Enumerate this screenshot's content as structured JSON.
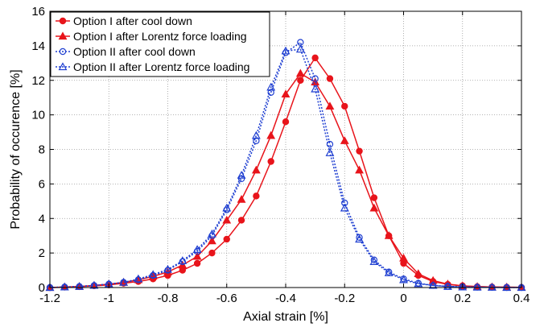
{
  "chart_data": {
    "type": "line",
    "title": "",
    "xlabel": "Axial strain [%]",
    "ylabel": "Probability of occurence [%]",
    "xlim": [
      -1.2,
      0.4
    ],
    "ylim": [
      0,
      16
    ],
    "grid": true,
    "legend_position": "top-left",
    "x_ticks": [
      -1.2,
      -1.0,
      -0.8,
      -0.6,
      -0.4,
      -0.2,
      0,
      0.2,
      0.4
    ],
    "x_tick_labels": [
      "-1.2",
      "-1",
      "-0.8",
      "-0.6",
      "-0.4",
      "-0.2",
      "0",
      "0.2",
      "0.4"
    ],
    "y_ticks": [
      0,
      2,
      4,
      6,
      8,
      10,
      12,
      14,
      16
    ],
    "y_tick_labels": [
      "0",
      "2",
      "4",
      "6",
      "8",
      "10",
      "12",
      "14",
      "16"
    ],
    "x": [
      -1.2,
      -1.15,
      -1.1,
      -1.05,
      -1.0,
      -0.95,
      -0.9,
      -0.85,
      -0.8,
      -0.75,
      -0.7,
      -0.65,
      -0.6,
      -0.55,
      -0.5,
      -0.45,
      -0.4,
      -0.35,
      -0.3,
      -0.25,
      -0.2,
      -0.15,
      -0.1,
      -0.05,
      0.0,
      0.05,
      0.1,
      0.15,
      0.2,
      0.25,
      0.3,
      0.35,
      0.4
    ],
    "series": [
      {
        "name": "Option  I after cool down",
        "color": "#e8141b",
        "marker": "circle-filled",
        "line_style": "solid",
        "values": [
          0.0,
          0.02,
          0.05,
          0.1,
          0.15,
          0.25,
          0.35,
          0.5,
          0.7,
          1.0,
          1.4,
          2.0,
          2.8,
          3.9,
          5.3,
          7.3,
          9.6,
          12.0,
          13.3,
          12.1,
          10.5,
          7.9,
          5.2,
          3.0,
          1.4,
          0.7,
          0.35,
          0.18,
          0.1,
          0.05,
          0.03,
          0.02,
          0.01
        ]
      },
      {
        "name": "Option  I after Lorentz force loading",
        "color": "#e8141b",
        "marker": "triangle-filled",
        "line_style": "solid",
        "values": [
          0.0,
          0.03,
          0.06,
          0.12,
          0.2,
          0.3,
          0.45,
          0.65,
          0.9,
          1.3,
          1.8,
          2.7,
          3.9,
          5.1,
          6.8,
          8.8,
          11.2,
          12.4,
          11.9,
          10.5,
          8.5,
          6.8,
          4.6,
          3.0,
          1.7,
          0.8,
          0.4,
          0.2,
          0.1,
          0.05,
          0.03,
          0.02,
          0.01
        ]
      },
      {
        "name": "Option II after cool down",
        "color": "#1f3fd1",
        "marker": "circle-open",
        "line_style": "dashed",
        "values": [
          0.0,
          0.03,
          0.06,
          0.12,
          0.2,
          0.3,
          0.45,
          0.7,
          1.0,
          1.5,
          2.1,
          3.0,
          4.5,
          6.3,
          8.5,
          11.3,
          13.6,
          14.2,
          12.1,
          8.3,
          4.9,
          2.9,
          1.6,
          0.9,
          0.5,
          0.25,
          0.12,
          0.07,
          0.04,
          0.02,
          0.01,
          0.0,
          0.0
        ]
      },
      {
        "name": "Option II after Lorentz force loading",
        "color": "#1f3fd1",
        "marker": "triangle-open",
        "line_style": "dashed",
        "values": [
          0.0,
          0.03,
          0.06,
          0.12,
          0.2,
          0.3,
          0.5,
          0.75,
          1.05,
          1.55,
          2.2,
          3.1,
          4.6,
          6.5,
          8.8,
          11.6,
          13.7,
          13.8,
          11.5,
          7.8,
          4.6,
          2.8,
          1.5,
          0.85,
          0.45,
          0.22,
          0.12,
          0.06,
          0.03,
          0.02,
          0.01,
          0.0,
          0.0
        ]
      }
    ]
  }
}
